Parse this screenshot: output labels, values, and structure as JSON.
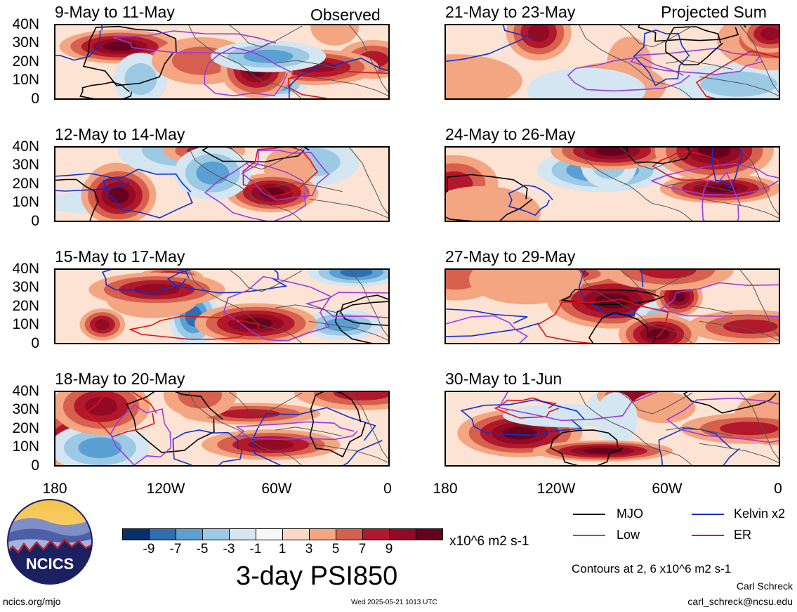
{
  "header": {
    "observed_label": "Observed",
    "projected_label": "Projected Sum"
  },
  "panels": {
    "left": [
      "9-May to 11-May",
      "12-May to 14-May",
      "15-May to 17-May",
      "18-May to 20-May"
    ],
    "right": [
      "21-May to 23-May",
      "24-May to 26-May",
      "27-May to 29-May",
      "30-May to 1-Jun"
    ]
  },
  "axes": {
    "y_ticks": [
      "40N",
      "30N",
      "20N",
      "10N",
      "0"
    ],
    "x_ticks": [
      "180",
      "120W",
      "60W",
      "0"
    ]
  },
  "colorbar": {
    "colors": [
      "#08306b",
      "#2f6fb1",
      "#5aa0d2",
      "#9cc9e4",
      "#d3e6f2",
      "#f7f7f7",
      "#fcd9c4",
      "#f4a582",
      "#d6604d",
      "#b2182b",
      "#930a24",
      "#67001f"
    ],
    "labels": [
      "-9",
      "-7",
      "-5",
      "-3",
      "-1",
      "1",
      "3",
      "5",
      "7",
      "9"
    ],
    "units": "x10^6 m2 s-1"
  },
  "legend": {
    "items": [
      {
        "name": "MJO",
        "color": "#000000"
      },
      {
        "name": "Kelvin x2",
        "color": "#1030d0"
      },
      {
        "name": "Low",
        "color": "#9a3bdc"
      },
      {
        "name": "ER",
        "color": "#e01010"
      }
    ],
    "contour_note": "Contours at 2, 6 x10^6 m2 s-1"
  },
  "main_title": "3-day PSI850",
  "logo_text": "NCICS",
  "footer": {
    "url": "ncics.org/mjo",
    "timestamp": "Wed 2025-05-21 1013 UTC",
    "author": "Carl Schreck",
    "email": "carl_schreck@ncsu.edu"
  }
}
